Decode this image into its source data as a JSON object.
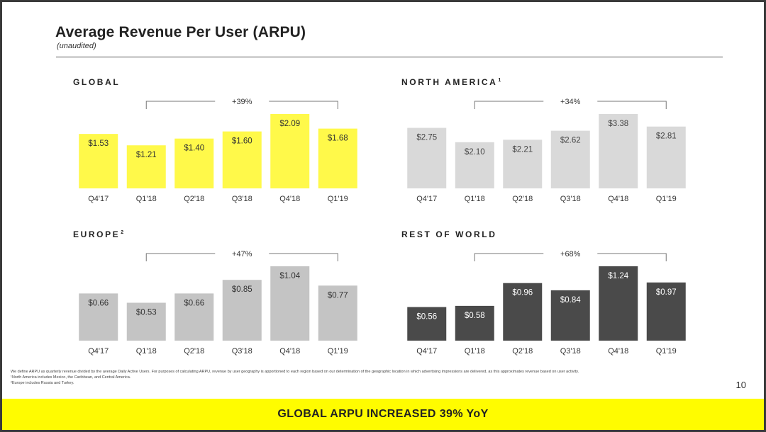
{
  "header": {
    "title": "Average Revenue Per User (ARPU)",
    "subtitle": "(unaudited)"
  },
  "chart_data": [
    {
      "id": "global",
      "type": "bar",
      "title": "GLOBAL",
      "title_sup": "",
      "categories": [
        "Q4'17",
        "Q1'18",
        "Q2'18",
        "Q3'18",
        "Q4'18",
        "Q1'19"
      ],
      "values": [
        1.53,
        1.21,
        1.4,
        1.6,
        2.09,
        1.68
      ],
      "labels": [
        "$1.53",
        "$1.21",
        "$1.40",
        "$1.60",
        "$2.09",
        "$1.68"
      ],
      "bar_color": "#fff94a",
      "label_color": "#333333",
      "growth_label": "+39%",
      "growth_span": [
        "Q1'18",
        "Q1'19"
      ]
    },
    {
      "id": "north-america",
      "type": "bar",
      "title": "NORTH AMERICA",
      "title_sup": "1",
      "categories": [
        "Q4'17",
        "Q1'18",
        "Q2'18",
        "Q3'18",
        "Q4'18",
        "Q1'19"
      ],
      "values": [
        2.75,
        2.1,
        2.21,
        2.62,
        3.38,
        2.81
      ],
      "labels": [
        "$2.75",
        "$2.10",
        "$2.21",
        "$2.62",
        "$3.38",
        "$2.81"
      ],
      "bar_color": "#d9d9d9",
      "label_color": "#444444",
      "growth_label": "+34%",
      "growth_span": [
        "Q1'18",
        "Q1'19"
      ]
    },
    {
      "id": "europe",
      "type": "bar",
      "title": "EUROPE",
      "title_sup": "2",
      "categories": [
        "Q4'17",
        "Q1'18",
        "Q2'18",
        "Q3'18",
        "Q4'18",
        "Q1'19"
      ],
      "values": [
        0.66,
        0.53,
        0.66,
        0.85,
        1.04,
        0.77
      ],
      "labels": [
        "$0.66",
        "$0.53",
        "$0.66",
        "$0.85",
        "$1.04",
        "$0.77"
      ],
      "bar_color": "#c4c4c4",
      "label_color": "#333333",
      "growth_label": "+47%",
      "growth_span": [
        "Q1'18",
        "Q1'19"
      ]
    },
    {
      "id": "rest-of-world",
      "type": "bar",
      "title": "REST OF WORLD",
      "title_sup": "",
      "categories": [
        "Q4'17",
        "Q1'18",
        "Q2'18",
        "Q3'18",
        "Q4'18",
        "Q1'19"
      ],
      "values": [
        0.56,
        0.58,
        0.96,
        0.84,
        1.24,
        0.97
      ],
      "labels": [
        "$0.56",
        "$0.58",
        "$0.96",
        "$0.84",
        "$1.24",
        "$0.97"
      ],
      "bar_color": "#4a4a4a",
      "label_color": "#ffffff",
      "growth_label": "+68%",
      "growth_span": [
        "Q1'18",
        "Q1'19"
      ]
    }
  ],
  "footnotes": [
    "We define ARPU as quarterly revenue divided by the average Daily Active Users. For purposes of calculating ARPU, revenue by user geography is apportioned to each region based on our determination of the geographic location in which advertising impressions are delivered, as this approximates revenue based on user activity.",
    "¹North America includes Mexico, the Caribbean, and Central America.",
    "²Europe includes Russia and Turkey."
  ],
  "page_number": "10",
  "banner": "GLOBAL ARPU INCREASED 39% YoY"
}
